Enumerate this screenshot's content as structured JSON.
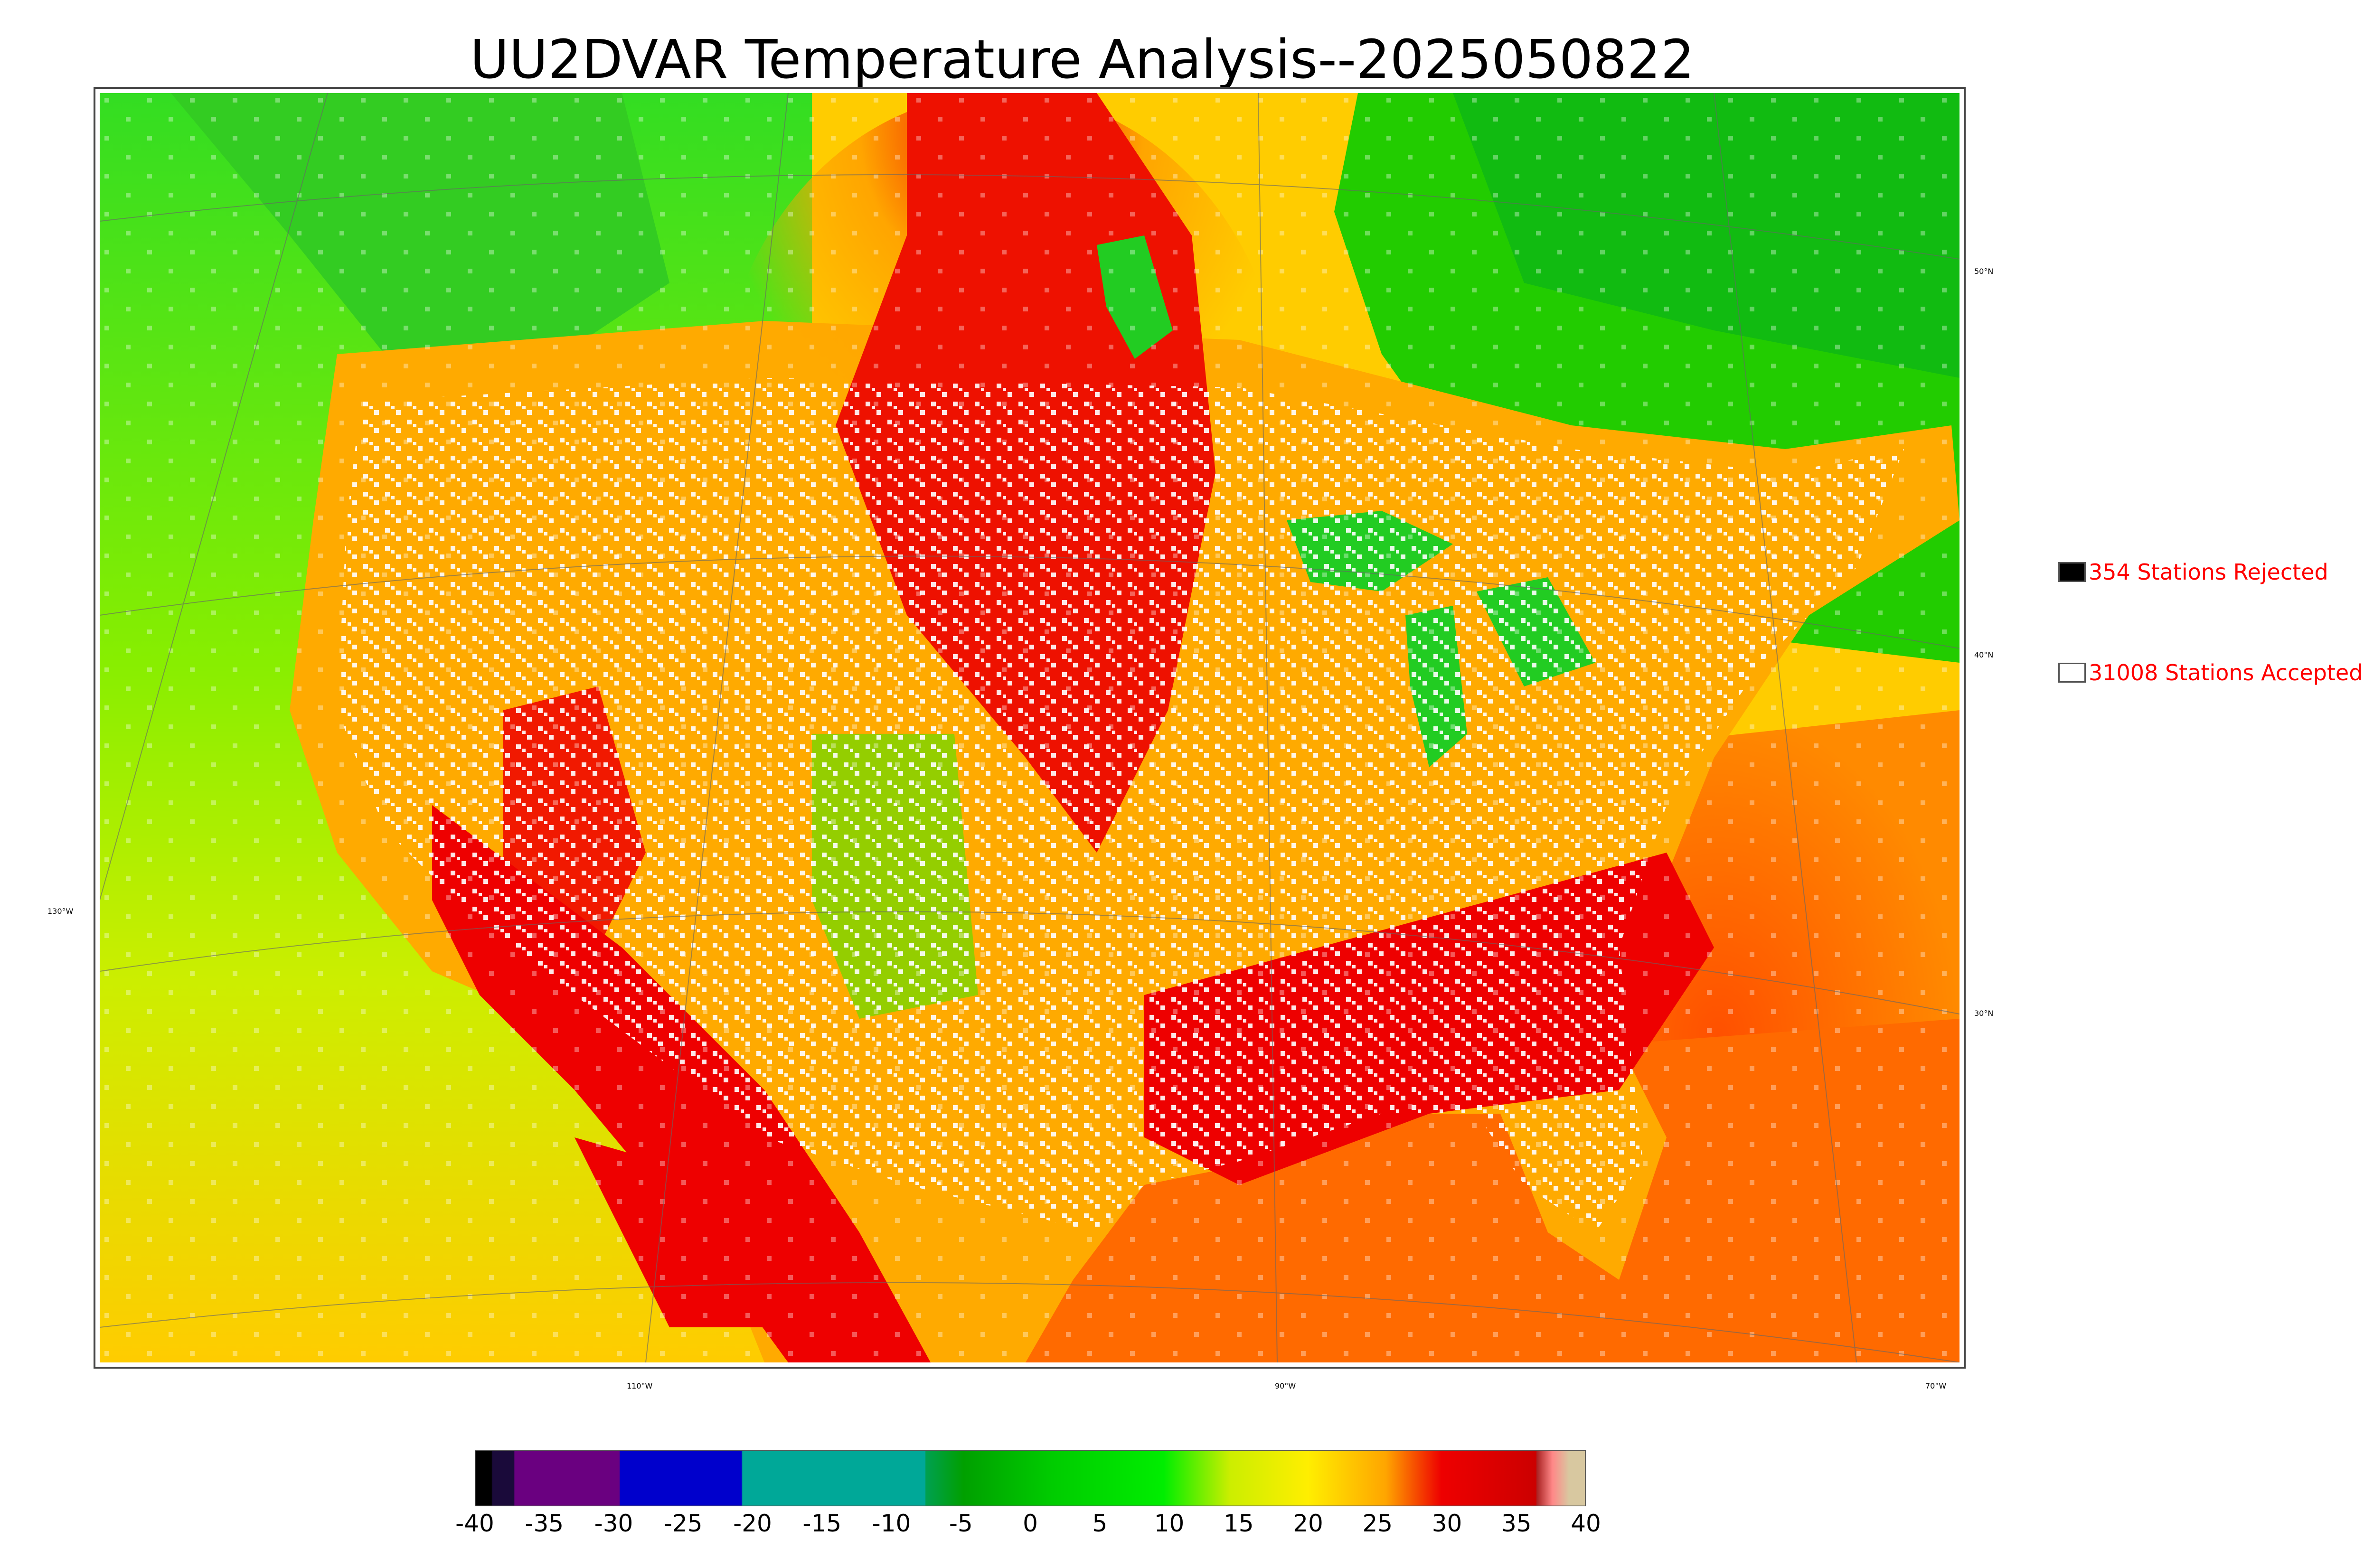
{
  "title": "UU2DVAR Temperature Analysis--2025050822",
  "legend": {
    "rejected": {
      "label": "354 Stations Rejected",
      "color": "#000000"
    },
    "accepted": {
      "label": "31008 Stations Accepted",
      "color": "#ffffff"
    }
  },
  "lat_labels": [
    "50°N",
    "40°N",
    "30°N"
  ],
  "lon_labels": [
    "130°W",
    "110°W",
    "90°W",
    "70°W"
  ],
  "colorbar": {
    "ticks": [
      "-40",
      "-35",
      "-30",
      "-25",
      "-20",
      "-15",
      "-10",
      "-5",
      "0",
      "5",
      "10",
      "15",
      "20",
      "25",
      "30",
      "35",
      "40"
    ],
    "range": [
      -40,
      40
    ],
    "colors": {
      "black": "#000000",
      "dark_purple": "#1a0a3a",
      "purple": "#6a0080",
      "blue": "#0000cc",
      "teal": "#00a898",
      "dark_green": "#00a000",
      "green": "#00ee00",
      "yellow": "#eeee00",
      "orange": "#ffa500",
      "red": "#ee0000",
      "dark_red": "#cc0000",
      "pink": "#ff8888",
      "tan": "#d8c8a0"
    }
  }
}
